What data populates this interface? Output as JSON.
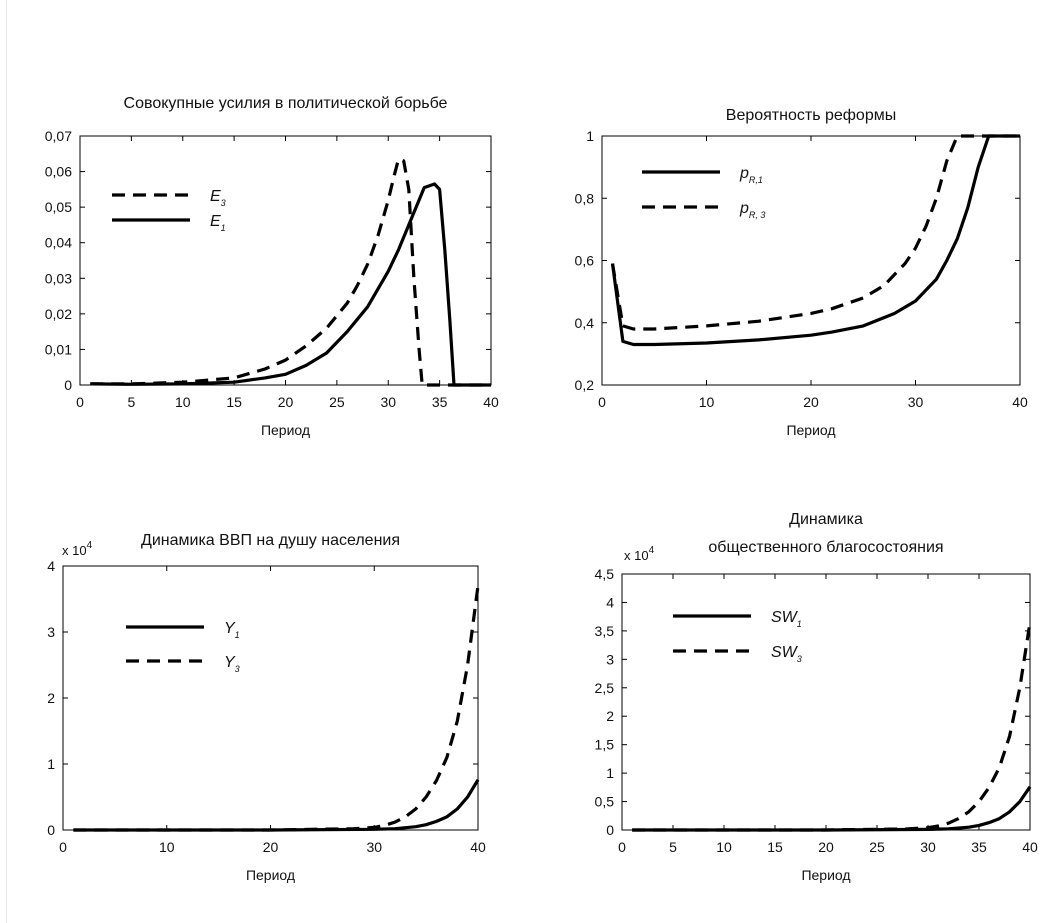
{
  "chart_data": [
    {
      "type": "line",
      "title": "Совокупные усилия в политической борьбе",
      "xlabel": "Период",
      "ylabel": "",
      "xlim": [
        0,
        40
      ],
      "ylim": [
        0,
        0.07
      ],
      "x_ticks": [
        "0",
        "5",
        "10",
        "15",
        "20",
        "25",
        "30",
        "35",
        "40"
      ],
      "y_ticks": [
        "0",
        "0,01",
        "0,02",
        "0,03",
        "0,04",
        "0,05",
        "0,06",
        "0,07"
      ],
      "legend": {
        "position": "top-left",
        "entries": [
          {
            "base": "E",
            "sub": "3",
            "style": "dashed"
          },
          {
            "base": "E",
            "sub": "1",
            "style": "solid"
          }
        ]
      },
      "series": [
        {
          "name": "E3",
          "style": "dashed",
          "points": [
            [
              1,
              0.0003
            ],
            [
              5,
              0.0003
            ],
            [
              10,
              0.0008
            ],
            [
              15,
              0.002
            ],
            [
              18,
              0.0045
            ],
            [
              20,
              0.007
            ],
            [
              22,
              0.011
            ],
            [
              24,
              0.016
            ],
            [
              26,
              0.023
            ],
            [
              27,
              0.028
            ],
            [
              28,
              0.034
            ],
            [
              29,
              0.042
            ],
            [
              30,
              0.052
            ],
            [
              30.5,
              0.058
            ],
            [
              31,
              0.0635
            ],
            [
              31.5,
              0.063
            ],
            [
              32,
              0.055
            ],
            [
              32.5,
              0.03
            ],
            [
              33,
              0.01
            ],
            [
              33.3,
              0.0
            ],
            [
              40,
              0.0
            ]
          ]
        },
        {
          "name": "E1",
          "style": "solid",
          "points": [
            [
              1,
              0.0003
            ],
            [
              5,
              0.0002
            ],
            [
              10,
              0.0003
            ],
            [
              15,
              0.0008
            ],
            [
              18,
              0.002
            ],
            [
              20,
              0.003
            ],
            [
              22,
              0.0055
            ],
            [
              24,
              0.009
            ],
            [
              26,
              0.015
            ],
            [
              28,
              0.022
            ],
            [
              30,
              0.032
            ],
            [
              31,
              0.038
            ],
            [
              32,
              0.045
            ],
            [
              33,
              0.052
            ],
            [
              33.5,
              0.0555
            ],
            [
              34.5,
              0.0565
            ],
            [
              35,
              0.055
            ],
            [
              35.5,
              0.038
            ],
            [
              36,
              0.018
            ],
            [
              36.4,
              0.0
            ],
            [
              40,
              0.0
            ]
          ]
        }
      ]
    },
    {
      "type": "line",
      "title": "Вероятность реформы",
      "xlabel": "Период",
      "ylabel": "",
      "xlim": [
        0,
        40
      ],
      "ylim": [
        0.2,
        1
      ],
      "x_ticks": [
        "0",
        "10",
        "20",
        "30",
        "40"
      ],
      "y_ticks": [
        "0,2",
        "0,4",
        "0,6",
        "0,8",
        "1"
      ],
      "legend": {
        "position": "top-left",
        "entries": [
          {
            "base": "p",
            "sub": "R,1",
            "style": "solid"
          },
          {
            "base": "p",
            "sub": "R, 3",
            "style": "dashed"
          }
        ]
      },
      "series": [
        {
          "name": "pR,1",
          "style": "solid",
          "points": [
            [
              1,
              0.59
            ],
            [
              2,
              0.34
            ],
            [
              3,
              0.33
            ],
            [
              5,
              0.33
            ],
            [
              10,
              0.335
            ],
            [
              15,
              0.345
            ],
            [
              20,
              0.36
            ],
            [
              22,
              0.37
            ],
            [
              25,
              0.39
            ],
            [
              28,
              0.43
            ],
            [
              30,
              0.47
            ],
            [
              32,
              0.54
            ],
            [
              33,
              0.6
            ],
            [
              34,
              0.67
            ],
            [
              35,
              0.77
            ],
            [
              36,
              0.9
            ],
            [
              37,
              1.0
            ],
            [
              40,
              1.0
            ]
          ]
        },
        {
          "name": "pR,3",
          "style": "dashed",
          "points": [
            [
              1,
              0.59
            ],
            [
              2,
              0.39
            ],
            [
              3,
              0.38
            ],
            [
              5,
              0.38
            ],
            [
              10,
              0.39
            ],
            [
              15,
              0.405
            ],
            [
              20,
              0.43
            ],
            [
              22,
              0.445
            ],
            [
              25,
              0.48
            ],
            [
              27,
              0.52
            ],
            [
              29,
              0.59
            ],
            [
              30,
              0.64
            ],
            [
              31,
              0.71
            ],
            [
              32,
              0.8
            ],
            [
              33,
              0.92
            ],
            [
              34,
              1.0
            ],
            [
              40,
              1.0
            ]
          ]
        }
      ]
    },
    {
      "type": "line",
      "title": "Динамика ВВП на душу населения",
      "xlabel": "Период",
      "ylabel": "",
      "y_multiplier": {
        "base": "x 10",
        "exp": "4"
      },
      "xlim": [
        0,
        40
      ],
      "ylim": [
        0,
        4
      ],
      "x_ticks": [
        "0",
        "10",
        "20",
        "30",
        "40"
      ],
      "y_ticks": [
        "0",
        "1",
        "2",
        "3",
        "4"
      ],
      "legend": {
        "position": "top-left",
        "entries": [
          {
            "base": "Y",
            "sub": "1",
            "style": "solid"
          },
          {
            "base": "Y",
            "sub": "3",
            "style": "dashed"
          }
        ]
      },
      "series": [
        {
          "name": "Y1",
          "style": "solid",
          "points": [
            [
              1,
              0.0
            ],
            [
              20,
              0.0
            ],
            [
              30,
              0.01
            ],
            [
              32,
              0.02
            ],
            [
              34,
              0.05
            ],
            [
              35,
              0.08
            ],
            [
              36,
              0.13
            ],
            [
              37,
              0.2
            ],
            [
              38,
              0.32
            ],
            [
              39,
              0.5
            ],
            [
              40,
              0.76
            ]
          ]
        },
        {
          "name": "Y3",
          "style": "dashed",
          "points": [
            [
              1,
              0.0
            ],
            [
              20,
              0.0
            ],
            [
              28,
              0.02
            ],
            [
              30,
              0.04
            ],
            [
              31,
              0.07
            ],
            [
              32,
              0.12
            ],
            [
              33,
              0.2
            ],
            [
              34,
              0.32
            ],
            [
              35,
              0.5
            ],
            [
              36,
              0.75
            ],
            [
              37,
              1.1
            ],
            [
              38,
              1.65
            ],
            [
              39,
              2.5
            ],
            [
              40,
              3.7
            ]
          ]
        }
      ]
    },
    {
      "type": "line",
      "title": "Динамика общественного благосостояния",
      "title_lines": [
        "Динамика",
        "общественного благосостояния"
      ],
      "xlabel": "Период",
      "ylabel": "",
      "y_multiplier": {
        "base": "x 10",
        "exp": "4"
      },
      "xlim": [
        0,
        40
      ],
      "ylim": [
        0,
        4.5
      ],
      "x_ticks": [
        "0",
        "5",
        "10",
        "15",
        "20",
        "25",
        "30",
        "35",
        "40"
      ],
      "y_ticks": [
        "0",
        "0,5",
        "1",
        "1,5",
        "2",
        "2,5",
        "3",
        "3,5",
        "4",
        "4,5"
      ],
      "legend": {
        "position": "top-left",
        "entries": [
          {
            "base": "SW",
            "sub": "1",
            "style": "solid"
          },
          {
            "base": "SW",
            "sub": "3",
            "style": "dashed"
          }
        ]
      },
      "series": [
        {
          "name": "SW1",
          "style": "solid",
          "points": [
            [
              1,
              0.0
            ],
            [
              20,
              0.0
            ],
            [
              30,
              0.01
            ],
            [
              32,
              0.02
            ],
            [
              34,
              0.05
            ],
            [
              35,
              0.08
            ],
            [
              36,
              0.13
            ],
            [
              37,
              0.2
            ],
            [
              38,
              0.32
            ],
            [
              39,
              0.5
            ],
            [
              40,
              0.76
            ]
          ]
        },
        {
          "name": "SW3",
          "style": "dashed",
          "points": [
            [
              1,
              0.0
            ],
            [
              20,
              0.0
            ],
            [
              28,
              0.02
            ],
            [
              30,
              0.04
            ],
            [
              31,
              0.07
            ],
            [
              32,
              0.12
            ],
            [
              33,
              0.2
            ],
            [
              34,
              0.32
            ],
            [
              35,
              0.5
            ],
            [
              36,
              0.75
            ],
            [
              37,
              1.1
            ],
            [
              38,
              1.65
            ],
            [
              39,
              2.5
            ],
            [
              40,
              3.65
            ]
          ]
        }
      ]
    }
  ]
}
